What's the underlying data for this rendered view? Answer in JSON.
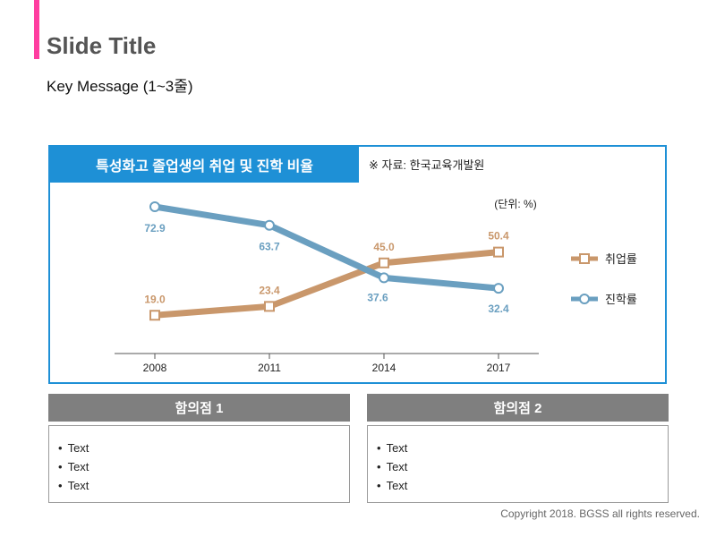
{
  "slide": {
    "title": "Slide Title",
    "key_message": "Key Message (1~3줄)",
    "accent_color": "#ff3da0"
  },
  "chart_header": {
    "title": "특성화고 졸업생의 취업 및 진학 비율",
    "source": "※ 자료: 한국교육개발원",
    "header_color": "#1e90d6"
  },
  "chart_data": {
    "type": "line",
    "unit_label": "(단위: %)",
    "x": [
      "2008",
      "2011",
      "2014",
      "2017"
    ],
    "ylim": [
      0,
      80
    ],
    "grid": false,
    "legend_position": "right",
    "series": [
      {
        "name": "취업률",
        "values": [
          19.0,
          23.4,
          45.0,
          50.4
        ],
        "color": "#c9976b",
        "marker": "square"
      },
      {
        "name": "진학률",
        "values": [
          72.9,
          63.7,
          37.6,
          32.4
        ],
        "color": "#6a9fc0",
        "marker": "circle"
      }
    ]
  },
  "panels": [
    {
      "title": "함의점 1",
      "items": [
        "Text",
        "Text",
        "Text"
      ]
    },
    {
      "title": "함의점 2",
      "items": [
        "Text",
        "Text",
        "Text"
      ]
    }
  ],
  "footer": {
    "copyright": "Copyright 2018. BGSS all rights reserved."
  }
}
